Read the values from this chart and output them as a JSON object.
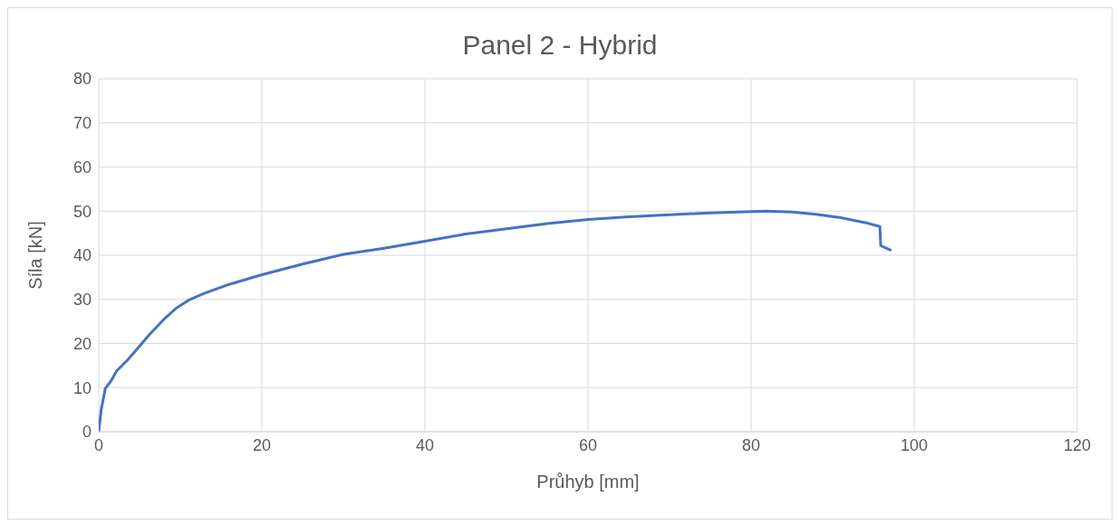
{
  "chart_data": {
    "type": "line",
    "title": "Panel 2 - Hybrid",
    "xlabel": "Průhyb [mm]",
    "ylabel": "Síla [kN]",
    "xlim": [
      0,
      120
    ],
    "xticks": [
      0,
      20,
      40,
      60,
      80,
      100,
      120
    ],
    "ylim": [
      0,
      80
    ],
    "yticks": [
      0,
      10,
      20,
      30,
      40,
      50,
      60,
      70,
      80
    ],
    "grid": true,
    "marker": "none",
    "line_style": "solid",
    "series": [
      {
        "color": "#4472c4",
        "x": [
          0,
          0.3,
          0.8,
          1.5,
          2.2,
          3.5,
          4.5,
          6.2,
          8,
          9.5,
          11,
          13,
          16,
          20,
          25,
          30,
          35,
          40,
          45,
          50,
          55,
          60,
          65,
          70,
          75,
          80,
          82,
          85,
          88,
          91,
          94,
          95.8,
          95.9,
          96.2,
          97.2
        ],
        "values": [
          0,
          5,
          9.8,
          11.5,
          13.8,
          16.2,
          18.3,
          22,
          25.5,
          28,
          29.8,
          31.4,
          33.4,
          35.6,
          38,
          40.2,
          41.6,
          43.2,
          44.8,
          46,
          47.2,
          48.1,
          48.7,
          49.2,
          49.6,
          49.9,
          50,
          49.8,
          49.3,
          48.5,
          47.4,
          46.5,
          42.2,
          41.9,
          41.1
        ]
      }
    ]
  }
}
